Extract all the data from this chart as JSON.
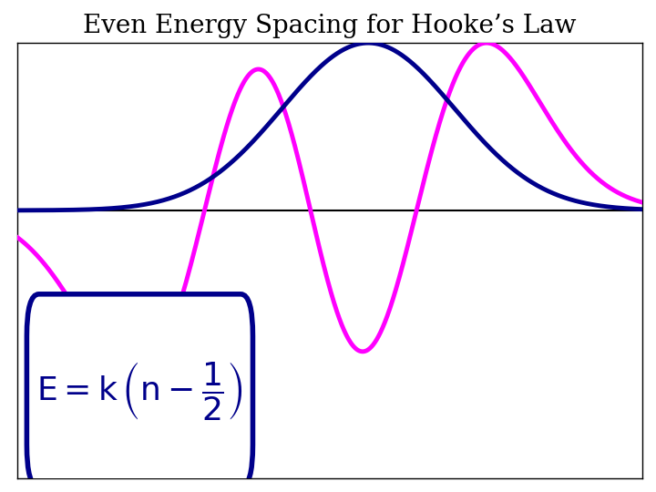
{
  "title": "Even Energy Spacing for Hooke’s Law",
  "title_fontsize": 20,
  "background_color": "#ffffff",
  "blue_color": "#00008B",
  "magenta_color": "#FF00FF",
  "line_color": "#000000",
  "x_range": [
    -6.5,
    6.5
  ],
  "y_range": [
    -1.6,
    1.0
  ],
  "zero_line_y": 0.0
}
